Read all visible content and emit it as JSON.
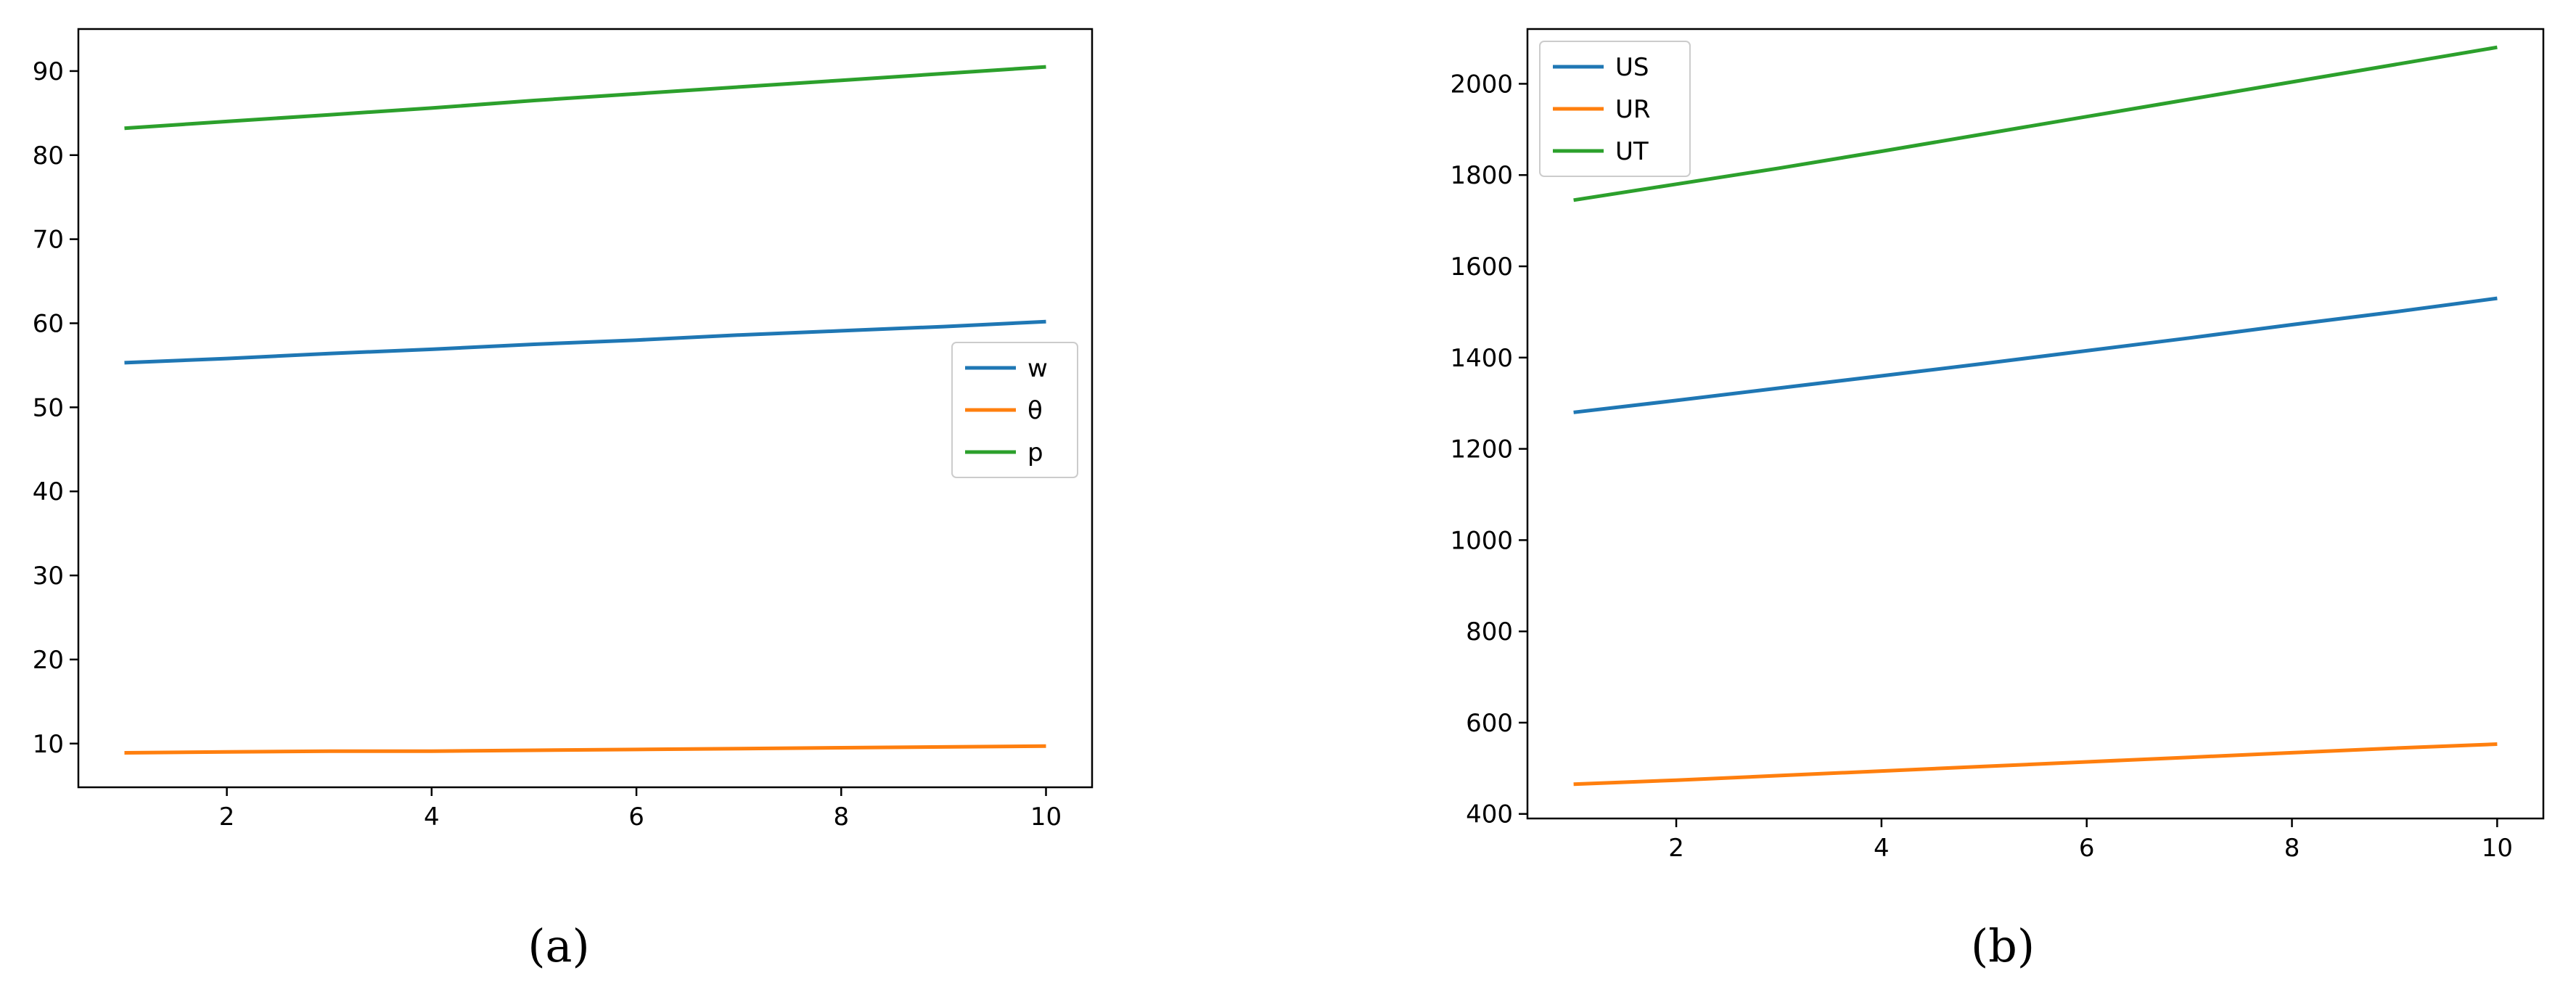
{
  "chart_data": [
    {
      "type": "line",
      "panel_label": "(a)",
      "x": [
        1,
        2,
        3,
        4,
        5,
        6,
        7,
        8,
        9,
        10
      ],
      "xlim": [
        0.55,
        10.45
      ],
      "ylim": [
        4.8,
        95.0
      ],
      "xticks": [
        2,
        4,
        6,
        8,
        10
      ],
      "yticks": [
        10,
        20,
        30,
        40,
        50,
        60,
        70,
        80,
        90
      ],
      "grid": false,
      "legend": "center-right",
      "series": [
        {
          "name": "w",
          "color": "#1f77b4",
          "values": [
            55.3,
            55.8,
            56.4,
            56.9,
            57.5,
            58.0,
            58.6,
            59.1,
            59.6,
            60.2
          ]
        },
        {
          "name": "θ",
          "color": "#ff7f0e",
          "values": [
            8.9,
            9.0,
            9.1,
            9.1,
            9.2,
            9.3,
            9.4,
            9.5,
            9.6,
            9.7
          ]
        },
        {
          "name": "p",
          "color": "#2ca02c",
          "values": [
            83.2,
            84.0,
            84.8,
            85.6,
            86.5,
            87.3,
            88.1,
            88.9,
            89.7,
            90.5
          ]
        }
      ]
    },
    {
      "type": "line",
      "panel_label": "(b)",
      "x": [
        1,
        2,
        3,
        4,
        5,
        6,
        7,
        8,
        9,
        10
      ],
      "xlim": [
        0.55,
        10.45
      ],
      "ylim": [
        390,
        2120
      ],
      "xticks": [
        2,
        4,
        6,
        8,
        10
      ],
      "yticks": [
        400,
        600,
        800,
        1000,
        1200,
        1400,
        1600,
        1800,
        2000
      ],
      "grid": false,
      "legend": "top-left",
      "series": [
        {
          "name": "US",
          "color": "#1f77b4",
          "values": [
            1280,
            1306,
            1333,
            1360,
            1387,
            1415,
            1443,
            1472,
            1500,
            1530
          ]
        },
        {
          "name": "UR",
          "color": "#ff7f0e",
          "values": [
            465,
            474,
            484,
            494,
            504,
            514,
            524,
            534,
            544,
            553
          ]
        },
        {
          "name": "UT",
          "color": "#2ca02c",
          "values": [
            1745,
            1780,
            1815,
            1852,
            1890,
            1928,
            1966,
            2004,
            2042,
            2080
          ]
        }
      ]
    }
  ]
}
